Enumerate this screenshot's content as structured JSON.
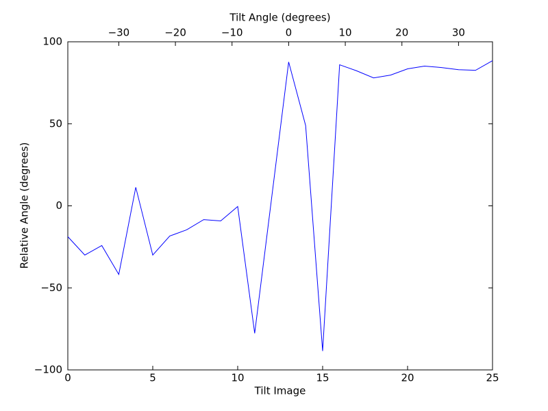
{
  "chart_data": {
    "type": "line",
    "x_label": "Tilt Image",
    "y_label": "Relative Angle (degrees)",
    "x2_label": "Tilt Angle (degrees)",
    "x": [
      0,
      1,
      2,
      3,
      4,
      5,
      6,
      7,
      8,
      9,
      10,
      11,
      12,
      13,
      14,
      15,
      16,
      17,
      18,
      19,
      20,
      21,
      22,
      23,
      24,
      25
    ],
    "series": [
      {
        "color": "#0000ff",
        "values": [
          -18.8,
          -30,
          -24.2,
          -41.8,
          11.3,
          -30,
          -18.4,
          -14.6,
          -8.4,
          -9.2,
          -0.4,
          -77.7,
          5,
          87.7,
          48.9,
          -88.5,
          86,
          82.3,
          78,
          79.7,
          83.5,
          85.2,
          84.3,
          83,
          82.6,
          88.5
        ]
      }
    ],
    "xlim": [
      0,
      25
    ],
    "xticks": [
      0,
      5,
      10,
      15,
      20,
      25
    ],
    "ylim": [
      -100,
      100
    ],
    "yticks": [
      {
        "value": -100,
        "label": "−100"
      },
      {
        "value": -50,
        "label": "−50"
      },
      0,
      50,
      100
    ],
    "x2lim": [
      -39,
      36
    ],
    "x2ticks": [
      {
        "value": -30,
        "label": "−30"
      },
      {
        "value": -20,
        "label": "−20"
      },
      {
        "value": -10,
        "label": "−10"
      },
      0,
      10,
      20,
      30
    ],
    "grid": false
  }
}
